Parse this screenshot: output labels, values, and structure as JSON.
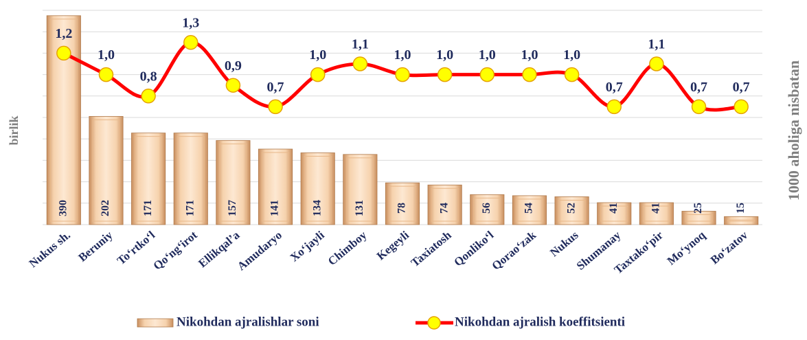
{
  "chart_data": {
    "type": "bar_line",
    "categories": [
      "Nukus sh.",
      "Beruniy",
      "To‘rtko‘l",
      "Qo‘ng‘irot",
      "Ellikqal’a",
      "Amudaryo",
      "Xo‘jayli",
      "Chimboy",
      "Kegeyli",
      "Taxiatosh",
      "Qonliko‘l",
      "Qorao‘zak",
      "Nukus",
      "Shumanay",
      "Taxtako‘pir",
      "Mo‘ynoq",
      "Bo‘zatov"
    ],
    "series": [
      {
        "name": "Nikohdan ajralishlar soni",
        "type": "bar",
        "color": "#f2c79c",
        "values": [
          390,
          202,
          171,
          171,
          157,
          141,
          134,
          131,
          78,
          74,
          56,
          54,
          52,
          41,
          41,
          25,
          15
        ]
      },
      {
        "name": "Nikohdan ajralish koeffitsienti",
        "type": "line",
        "axis": "y2",
        "color": "#ff0000",
        "values": [
          1.2,
          1.0,
          0.8,
          1.3,
          0.9,
          0.7,
          1.0,
          1.1,
          1.0,
          1.0,
          1.0,
          1.0,
          1.0,
          0.7,
          1.1,
          0.7,
          0.7
        ],
        "value_labels": [
          "1,2",
          "1,0",
          "0,8",
          "1,3",
          "0,9",
          "0,7",
          "1,0",
          "1,1",
          "1,0",
          "1,0",
          "1,0",
          "1,0",
          "1,0",
          "0,7",
          "1,1",
          "0,7",
          "0,7"
        ]
      }
    ],
    "ylabel": "birlik",
    "y2label": "1000 aholiga nisbatan",
    "ylim": [
      0,
      400
    ],
    "yticks": [
      0,
      40,
      80,
      120,
      160,
      200,
      240,
      280,
      320,
      360,
      400
    ],
    "y2lim": [
      -0.4,
      1.6
    ],
    "grid": true,
    "legend": "bottom"
  }
}
